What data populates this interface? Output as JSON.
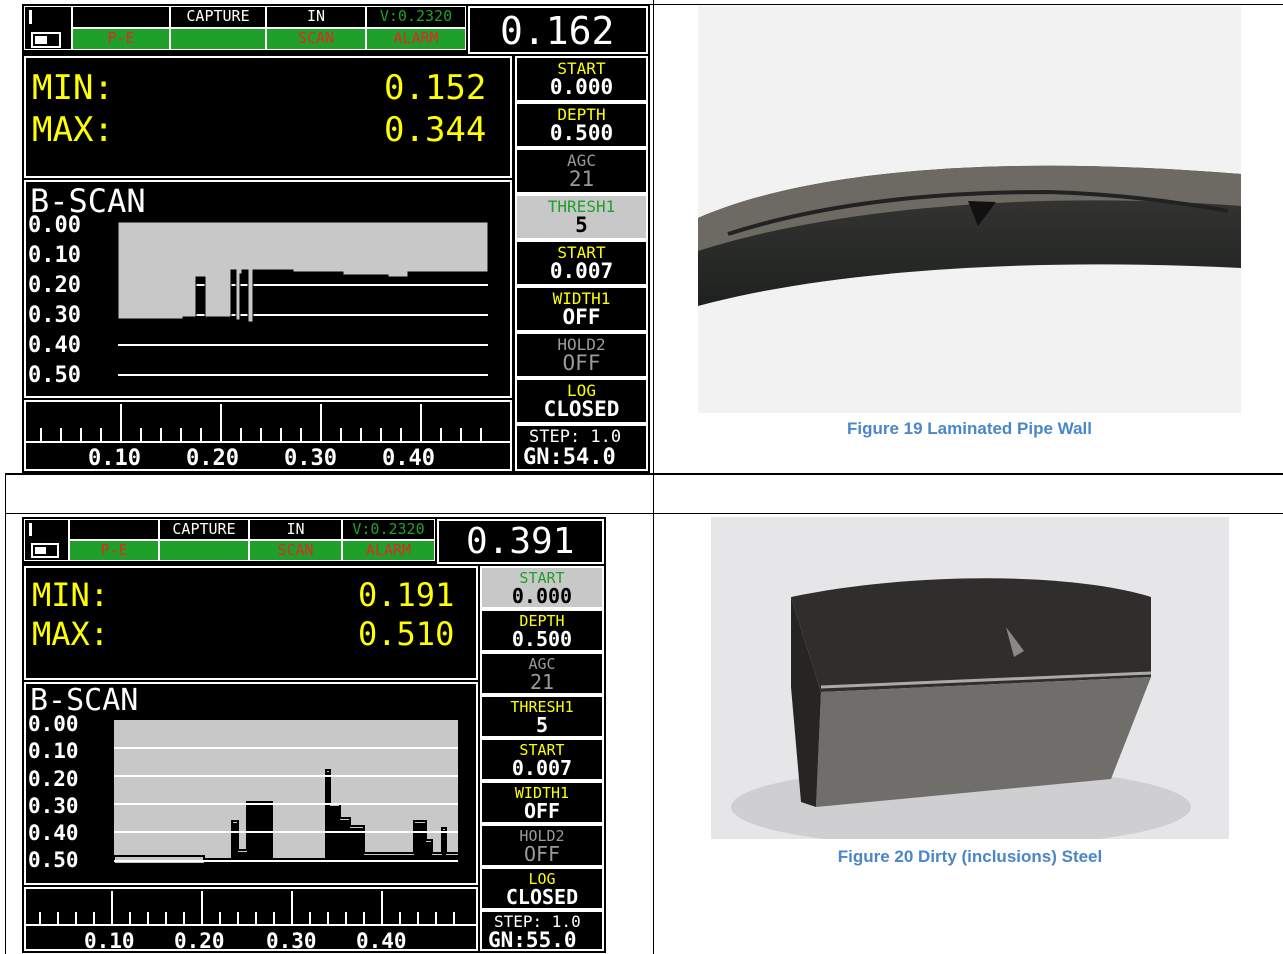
{
  "gauges": [
    {
      "header": {
        "row1": [
          "CAPTURE",
          "IN",
          "V:0.2320"
        ],
        "row2": [
          "P-E",
          "SCAN",
          "ALARM"
        ],
        "reading": "0.162"
      },
      "min_label": "MIN:",
      "min_value": "0.152",
      "max_label": "MAX:",
      "max_value": "0.344",
      "bscan_title": "B-SCAN",
      "depth_labels": [
        "0.00",
        "0.10",
        "0.20",
        "0.30",
        "0.40",
        "0.50"
      ],
      "scale_labels": [
        "0.10",
        "0.20",
        "0.30",
        "0.40"
      ],
      "side": [
        {
          "a": "START",
          "b": "0.000",
          "color": "#ffff00"
        },
        {
          "a": "DEPTH",
          "b": "0.500",
          "color": "#ffff00"
        },
        {
          "a": "AGC",
          "b": "21",
          "color": "#9a9a9a"
        },
        {
          "a": "THRESH1",
          "b": "5",
          "color": "#1fa02a"
        },
        {
          "a": "START",
          "b": "0.007",
          "color": "#ffff00"
        },
        {
          "a": "WIDTH1",
          "b": "OFF",
          "color": "#ffff00"
        },
        {
          "a": "HOLD2",
          "b": "OFF",
          "color": "#9a9a9a"
        },
        {
          "a": "LOG",
          "b": "CLOSED",
          "color": "#ffff00"
        }
      ],
      "step": "STEP: 1.0",
      "gain": "GN:54.0"
    },
    {
      "header": {
        "row1": [
          "CAPTURE",
          "IN",
          "V:0.2320"
        ],
        "row2": [
          "P-E",
          "SCAN",
          "ALARM"
        ],
        "reading": "0.391"
      },
      "min_label": "MIN:",
      "min_value": "0.191",
      "max_label": "MAX:",
      "max_value": "0.510",
      "bscan_title": "B-SCAN",
      "depth_labels": [
        "0.00",
        "0.10",
        "0.20",
        "0.30",
        "0.40",
        "0.50"
      ],
      "scale_labels": [
        "0.10",
        "0.20",
        "0.30",
        "0.40"
      ],
      "side": [
        {
          "a": "START",
          "b": "0.000",
          "color": "#1fa02a"
        },
        {
          "a": "DEPTH",
          "b": "0.500",
          "color": "#ffff00"
        },
        {
          "a": "AGC",
          "b": "21",
          "color": "#9a9a9a"
        },
        {
          "a": "THRESH1",
          "b": "5",
          "color": "#ffff00"
        },
        {
          "a": "START",
          "b": "0.007",
          "color": "#ffff00"
        },
        {
          "a": "WIDTH1",
          "b": "OFF",
          "color": "#ffff00"
        },
        {
          "a": "HOLD2",
          "b": "OFF",
          "color": "#9a9a9a"
        },
        {
          "a": "LOG",
          "b": "CLOSED",
          "color": "#ffff00"
        }
      ],
      "step": "STEP: 1.0",
      "gain": "GN:55.0"
    }
  ],
  "captions": {
    "fig19": "Figure 19 Laminated Pipe Wall",
    "fig20": "Figure 20 Dirty (inclusions) Steel"
  },
  "colors": {
    "caption": "#4a86c8",
    "gauge_bg": "#000000",
    "alarm_bar": "#1fa02a",
    "value": "#ffff00",
    "scan_fill": "#c8c8c8"
  }
}
